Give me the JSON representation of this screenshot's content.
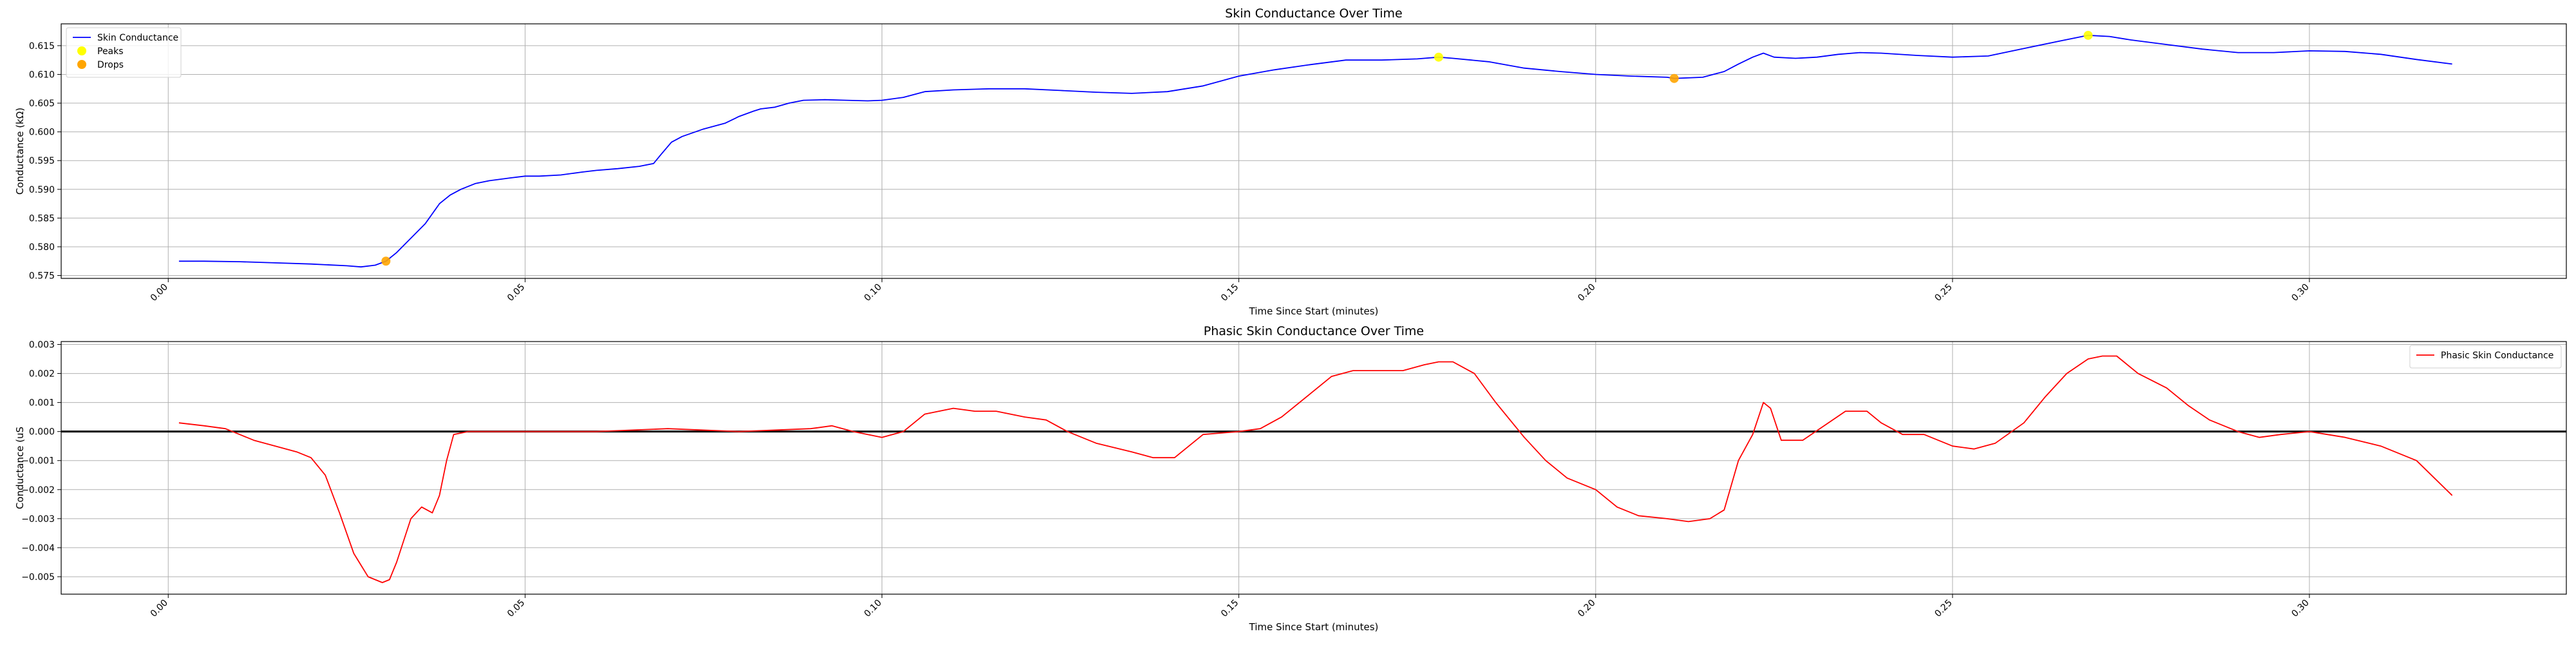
{
  "chart_data": [
    {
      "type": "line",
      "title": "Skin Conductance Over Time",
      "xlabel": "Time Since Start (minutes)",
      "ylabel": "Conductance (kΩ)",
      "xlim": [
        -0.015,
        0.336
      ],
      "ylim": [
        0.5745,
        0.6188
      ],
      "xticks": [
        "0.00",
        "0.05",
        "0.10",
        "0.15",
        "0.20",
        "0.25",
        "0.30"
      ],
      "xtick_values": [
        0,
        0.05,
        0.1,
        0.15,
        0.2,
        0.25,
        0.3
      ],
      "yticks": [
        "0.575",
        "0.580",
        "0.585",
        "0.590",
        "0.595",
        "0.600",
        "0.605",
        "0.610",
        "0.615"
      ],
      "ytick_values": [
        0.575,
        0.58,
        0.585,
        0.59,
        0.595,
        0.6,
        0.605,
        0.61,
        0.615
      ],
      "grid": true,
      "legend": "top-left",
      "series": [
        {
          "name": "Skin Conductance",
          "kind": "line",
          "color": "#0000ff",
          "x": [
            0.0015,
            0.005,
            0.01,
            0.015,
            0.02,
            0.025,
            0.027,
            0.029,
            0.0305,
            0.032,
            0.034,
            0.036,
            0.038,
            0.0395,
            0.041,
            0.043,
            0.045,
            0.048,
            0.05,
            0.052,
            0.055,
            0.058,
            0.06,
            0.063,
            0.066,
            0.068,
            0.069,
            0.0705,
            0.072,
            0.075,
            0.078,
            0.08,
            0.082,
            0.083,
            0.085,
            0.087,
            0.089,
            0.092,
            0.095,
            0.098,
            0.1,
            0.103,
            0.106,
            0.11,
            0.115,
            0.12,
            0.125,
            0.13,
            0.135,
            0.14,
            0.145,
            0.15,
            0.155,
            0.16,
            0.165,
            0.17,
            0.175,
            0.178,
            0.18,
            0.185,
            0.19,
            0.195,
            0.2,
            0.205,
            0.21,
            0.211,
            0.215,
            0.218,
            0.22,
            0.222,
            0.2235,
            0.225,
            0.228,
            0.231,
            0.234,
            0.237,
            0.24,
            0.245,
            0.25,
            0.255,
            0.26,
            0.265,
            0.269,
            0.272,
            0.275,
            0.28,
            0.285,
            0.29,
            0.295,
            0.3,
            0.305,
            0.31,
            0.315,
            0.32
          ],
          "y": [
            0.5775,
            0.5775,
            0.5774,
            0.5772,
            0.577,
            0.5767,
            0.5765,
            0.5768,
            0.5775,
            0.579,
            0.5815,
            0.584,
            0.5875,
            0.589,
            0.59,
            0.591,
            0.5915,
            0.592,
            0.5923,
            0.5923,
            0.5925,
            0.593,
            0.5933,
            0.5936,
            0.594,
            0.5945,
            0.596,
            0.5982,
            0.5992,
            0.6005,
            0.6015,
            0.6027,
            0.6036,
            0.604,
            0.6043,
            0.605,
            0.6055,
            0.6056,
            0.6055,
            0.6054,
            0.6055,
            0.606,
            0.607,
            0.6073,
            0.6075,
            0.6075,
            0.6072,
            0.6069,
            0.6067,
            0.607,
            0.608,
            0.6097,
            0.6108,
            0.6117,
            0.6125,
            0.6125,
            0.6127,
            0.613,
            0.6128,
            0.6122,
            0.6111,
            0.6105,
            0.61,
            0.6097,
            0.6095,
            0.6093,
            0.6095,
            0.6105,
            0.6118,
            0.613,
            0.6137,
            0.613,
            0.6128,
            0.613,
            0.6135,
            0.6138,
            0.6137,
            0.6133,
            0.613,
            0.6132,
            0.6145,
            0.6158,
            0.6168,
            0.6166,
            0.616,
            0.6152,
            0.6144,
            0.6138,
            0.6138,
            0.6141,
            0.614,
            0.6135,
            0.6126,
            0.6118
          ]
        },
        {
          "name": "Peaks",
          "kind": "scatter",
          "color": "#ffff00",
          "x": [
            0.178,
            0.269
          ],
          "y": [
            0.613,
            0.6168
          ]
        },
        {
          "name": "Drops",
          "kind": "scatter",
          "color": "#ffa500",
          "x": [
            0.0305,
            0.211
          ],
          "y": [
            0.5775,
            0.6093
          ]
        }
      ]
    },
    {
      "type": "line",
      "title": "Phasic Skin Conductance Over Time",
      "xlabel": "Time Since Start (minutes)",
      "ylabel": "Conductance (uS",
      "xlim": [
        -0.015,
        0.336
      ],
      "ylim": [
        -0.0056,
        0.0031
      ],
      "xticks": [
        "0.00",
        "0.05",
        "0.10",
        "0.15",
        "0.20",
        "0.25",
        "0.30"
      ],
      "xtick_values": [
        0,
        0.05,
        0.1,
        0.15,
        0.2,
        0.25,
        0.3
      ],
      "yticks": [
        "−0.005",
        "−0.004",
        "−0.003",
        "−0.002",
        "−0.001",
        "0.000",
        "0.001",
        "0.002",
        "0.003"
      ],
      "ytick_values": [
        -0.005,
        -0.004,
        -0.003,
        -0.002,
        -0.001,
        0.0,
        0.001,
        0.002,
        0.003
      ],
      "grid": true,
      "legend": "top-right",
      "hline": 0.0,
      "series": [
        {
          "name": "Phasic Skin Conductance",
          "kind": "line",
          "color": "#ff0000",
          "x": [
            0.0015,
            0.005,
            0.008,
            0.01,
            0.012,
            0.015,
            0.018,
            0.02,
            0.022,
            0.024,
            0.026,
            0.028,
            0.03,
            0.031,
            0.032,
            0.034,
            0.0355,
            0.037,
            0.038,
            0.039,
            0.04,
            0.042,
            0.05,
            0.06,
            0.07,
            0.08,
            0.09,
            0.093,
            0.096,
            0.1,
            0.103,
            0.106,
            0.11,
            0.113,
            0.116,
            0.12,
            0.123,
            0.126,
            0.13,
            0.135,
            0.138,
            0.141,
            0.145,
            0.15,
            0.153,
            0.156,
            0.16,
            0.163,
            0.166,
            0.17,
            0.173,
            0.176,
            0.178,
            0.18,
            0.183,
            0.186,
            0.19,
            0.193,
            0.196,
            0.2,
            0.203,
            0.206,
            0.21,
            0.213,
            0.216,
            0.218,
            0.22,
            0.222,
            0.2235,
            0.2245,
            0.226,
            0.229,
            0.232,
            0.235,
            0.238,
            0.24,
            0.243,
            0.246,
            0.25,
            0.253,
            0.256,
            0.26,
            0.263,
            0.266,
            0.269,
            0.271,
            0.273,
            0.276,
            0.28,
            0.283,
            0.286,
            0.29,
            0.293,
            0.296,
            0.3,
            0.305,
            0.31,
            0.315,
            0.32
          ],
          "y": [
            0.0003,
            0.0002,
            0.0001,
            -0.0001,
            -0.0003,
            -0.0005,
            -0.0007,
            -0.0009,
            -0.0015,
            -0.0028,
            -0.0042,
            -0.005,
            -0.0052,
            -0.0051,
            -0.0045,
            -0.003,
            -0.0026,
            -0.0028,
            -0.0022,
            -0.001,
            -0.0001,
            0.0,
            0.0,
            0.0,
            0.0001,
            0.0,
            0.0001,
            0.0002,
            0.0,
            -0.0002,
            0.0,
            0.0006,
            0.0008,
            0.0007,
            0.0007,
            0.0005,
            0.0004,
            0.0,
            -0.0004,
            -0.0007,
            -0.0009,
            -0.0009,
            -0.0001,
            0.0,
            0.0001,
            0.0005,
            0.0013,
            0.0019,
            0.0021,
            0.0021,
            0.0021,
            0.0023,
            0.0024,
            0.0024,
            0.002,
            0.001,
            -0.0002,
            -0.001,
            -0.0016,
            -0.002,
            -0.0026,
            -0.0029,
            -0.003,
            -0.0031,
            -0.003,
            -0.0027,
            -0.001,
            -0.0001,
            0.001,
            0.0008,
            -0.0003,
            -0.0003,
            0.0002,
            0.0007,
            0.0007,
            0.0003,
            -0.0001,
            -0.0001,
            -0.0005,
            -0.0006,
            -0.0004,
            0.0003,
            0.0012,
            0.002,
            0.0025,
            0.0026,
            0.0026,
            0.002,
            0.0015,
            0.0009,
            0.0004,
            0.0,
            -0.0002,
            -0.0001,
            0.0,
            -0.0002,
            -0.0005,
            -0.001,
            -0.0022
          ]
        }
      ]
    }
  ]
}
